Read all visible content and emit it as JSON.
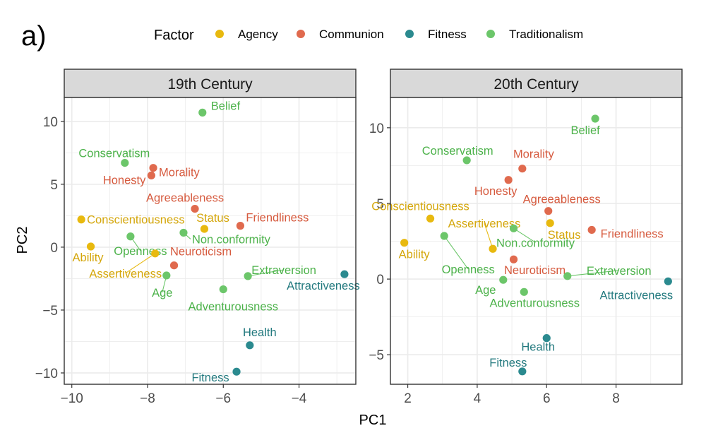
{
  "figure": {
    "panel_label": "a)",
    "legend": {
      "title": "Factor",
      "entries": [
        "Agency",
        "Communion",
        "Fitness",
        "Traditionalism"
      ]
    },
    "colors": {
      "Agency": "#e8b90f",
      "Communion": "#e06a4e",
      "Fitness": "#2b8a8f",
      "Traditionalism": "#6cc66a"
    }
  },
  "chart_data": [
    {
      "type": "scatter",
      "title": "19th Century",
      "xlabel": "PC1",
      "ylabel": "PC2",
      "xlim": [
        -10.2,
        -2.5
      ],
      "ylim": [
        -10.9,
        11.9
      ],
      "xticks": [
        -10,
        -8,
        -6,
        -4
      ],
      "xtick_labels": [
        "−10",
        "−8",
        "−6",
        "−4"
      ],
      "yticks": [
        -10,
        -5,
        0,
        5,
        10
      ],
      "ytick_labels": [
        "−10",
        "−5",
        "0",
        "5",
        "10"
      ],
      "points": [
        {
          "label": "Belief",
          "factor": "Traditionalism",
          "x": -6.55,
          "y": 10.7
        },
        {
          "label": "Conservatism",
          "factor": "Traditionalism",
          "x": -8.6,
          "y": 6.7
        },
        {
          "label": "Morality",
          "factor": "Communion",
          "x": -7.85,
          "y": 6.3
        },
        {
          "label": "Honesty",
          "factor": "Communion",
          "x": -7.9,
          "y": 5.7
        },
        {
          "label": "Agreeableness",
          "factor": "Communion",
          "x": -6.75,
          "y": 3.05
        },
        {
          "label": "Conscientiousness",
          "factor": "Agency",
          "x": -9.75,
          "y": 2.2
        },
        {
          "label": "Friendliness",
          "factor": "Communion",
          "x": -5.55,
          "y": 1.7
        },
        {
          "label": "Status",
          "factor": "Agency",
          "x": -6.5,
          "y": 1.45
        },
        {
          "label": "Non.conformity",
          "factor": "Traditionalism",
          "x": -7.05,
          "y": 1.15
        },
        {
          "label": "Openness",
          "factor": "Traditionalism",
          "x": -8.45,
          "y": 0.85
        },
        {
          "label": "Ability",
          "factor": "Agency",
          "x": -9.5,
          "y": 0.05
        },
        {
          "label": "Assertiveness",
          "factor": "Agency",
          "x": -7.8,
          "y": -0.5
        },
        {
          "label": "Neuroticism",
          "factor": "Communion",
          "x": -7.3,
          "y": -1.45
        },
        {
          "label": "Age",
          "factor": "Traditionalism",
          "x": -7.5,
          "y": -2.25
        },
        {
          "label": "Extraversion",
          "factor": "Traditionalism",
          "x": -5.35,
          "y": -2.3
        },
        {
          "label": "Attractiveness",
          "factor": "Fitness",
          "x": -2.8,
          "y": -2.15
        },
        {
          "label": "Adventurousness",
          "factor": "Traditionalism",
          "x": -6.0,
          "y": -3.35
        },
        {
          "label": "Health",
          "factor": "Fitness",
          "x": -5.3,
          "y": -7.8
        },
        {
          "label": "Fitness",
          "factor": "Fitness",
          "x": -5.65,
          "y": -9.9
        }
      ]
    },
    {
      "type": "scatter",
      "title": "20th Century",
      "xlabel": "PC1",
      "ylabel": "PC2",
      "xlim": [
        1.5,
        9.9
      ],
      "ylim": [
        -6.95,
        12.0
      ],
      "xticks": [
        2,
        4,
        6,
        8
      ],
      "xtick_labels": [
        "2",
        "4",
        "6",
        "8"
      ],
      "yticks": [
        -5,
        0,
        5,
        10
      ],
      "ytick_labels": [
        "−5",
        "0",
        "5",
        "10"
      ],
      "points": [
        {
          "label": "Belief",
          "factor": "Traditionalism",
          "x": 7.4,
          "y": 10.6
        },
        {
          "label": "Conservatism",
          "factor": "Traditionalism",
          "x": 3.7,
          "y": 7.85
        },
        {
          "label": "Morality",
          "factor": "Communion",
          "x": 5.3,
          "y": 7.3
        },
        {
          "label": "Honesty",
          "factor": "Communion",
          "x": 4.9,
          "y": 6.55
        },
        {
          "label": "Agreeableness",
          "factor": "Communion",
          "x": 6.05,
          "y": 4.5
        },
        {
          "label": "Conscientiousness",
          "factor": "Agency",
          "x": 2.65,
          "y": 4.0
        },
        {
          "label": "Status",
          "factor": "Agency",
          "x": 6.1,
          "y": 3.7
        },
        {
          "label": "Friendliness",
          "factor": "Communion",
          "x": 7.3,
          "y": 3.25
        },
        {
          "label": "Assertiveness",
          "factor": "Agency",
          "x": 4.45,
          "y": 2.0
        },
        {
          "label": "Non.conformity",
          "factor": "Traditionalism",
          "x": 5.05,
          "y": 3.35
        },
        {
          "label": "Openness",
          "factor": "Traditionalism",
          "x": 3.05,
          "y": 2.85
        },
        {
          "label": "Ability",
          "factor": "Agency",
          "x": 1.9,
          "y": 2.4
        },
        {
          "label": "Neuroticism",
          "factor": "Communion",
          "x": 5.05,
          "y": 1.3
        },
        {
          "label": "Age",
          "factor": "Traditionalism",
          "x": 4.75,
          "y": -0.05
        },
        {
          "label": "Extraversion",
          "factor": "Traditionalism",
          "x": 6.6,
          "y": 0.2
        },
        {
          "label": "Attractiveness",
          "factor": "Fitness",
          "x": 9.5,
          "y": -0.15
        },
        {
          "label": "Adventurousness",
          "factor": "Traditionalism",
          "x": 5.35,
          "y": -0.85
        },
        {
          "label": "Health",
          "factor": "Fitness",
          "x": 6.0,
          "y": -3.9
        },
        {
          "label": "Fitness",
          "factor": "Fitness",
          "x": 5.3,
          "y": -6.1
        }
      ]
    }
  ]
}
